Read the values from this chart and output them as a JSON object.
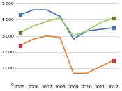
{
  "years": [
    2005,
    2006,
    2007,
    2008,
    2009,
    2010,
    2011,
    2012
  ],
  "series": {
    "blue": [
      4300,
      4600,
      4600,
      4200,
      2800,
      3300,
      3400,
      3500
    ],
    "green": [
      3200,
      3600,
      3900,
      4100,
      3000,
      3300,
      3800,
      4100
    ],
    "orange": [
      2400,
      2800,
      3000,
      2900,
      700,
      700,
      1100,
      1500
    ]
  },
  "colors": {
    "blue": "#4472c4",
    "green": "#92d050",
    "orange": "#ed7d31"
  },
  "marker_first_last": {
    "blue": {
      "shape": "s",
      "color": "#4472c4"
    },
    "green": {
      "shape": "s",
      "color": "#5a7a2a"
    },
    "orange": {
      "shape": "s",
      "color": "#c0392b"
    }
  },
  "ylim": [
    0,
    5000
  ],
  "yticks": [
    0,
    1000,
    2000,
    3000,
    4000,
    5000
  ],
  "background_color": "#ffffff",
  "grid_color": "#d0d0d0",
  "linewidth": 1.2,
  "markersize": 3.5,
  "xlabel_fontsize": 4.5,
  "ylabel_fontsize": 4.5
}
